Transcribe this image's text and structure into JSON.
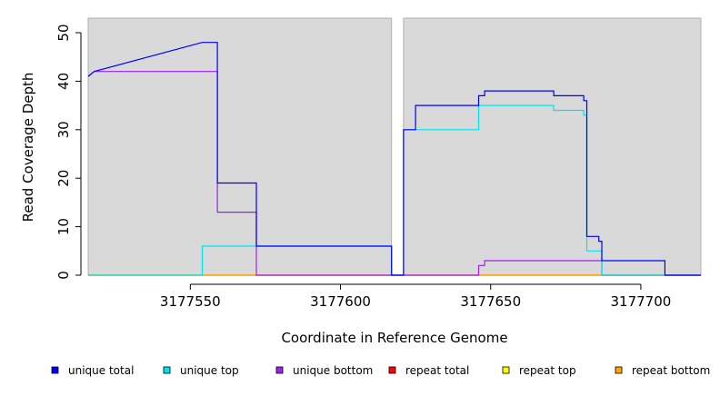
{
  "chart_data": {
    "type": "line",
    "step": true,
    "xlabel": "Coordinate in Reference Genome",
    "ylabel": "Read Coverage Depth",
    "xlim": [
      3177516,
      3177720
    ],
    "ylim": [
      0,
      53
    ],
    "x_ticks": [
      3177550,
      3177600,
      3177650,
      3177700
    ],
    "y_ticks": [
      0,
      10,
      20,
      30,
      40,
      50
    ],
    "background_color": "#d9d9d9",
    "grid": false,
    "legend_position": "bottom",
    "regions": [
      {
        "x": [
          3177516,
          3177617
        ]
      },
      {
        "x": [
          3177621,
          3177720
        ]
      }
    ],
    "series": [
      {
        "name": "unique total",
        "color": "#0000ff",
        "x": [
          3177516,
          3177518,
          3177554,
          3177559,
          3177559,
          3177572,
          3177572,
          3177617,
          3177617,
          3177621,
          3177621,
          3177625,
          3177625,
          3177646,
          3177646,
          3177648,
          3177648,
          3177671,
          3177671,
          3177681,
          3177681,
          3177682,
          3177682,
          3177686,
          3177686,
          3177687,
          3177687,
          3177708,
          3177708,
          3177720
        ],
        "y": [
          41,
          42,
          48,
          48,
          19,
          19,
          6,
          6,
          0,
          0,
          30,
          30,
          35,
          35,
          37,
          37,
          38,
          38,
          37,
          37,
          36,
          36,
          8,
          8,
          7,
          7,
          3,
          3,
          0,
          0
        ]
      },
      {
        "name": "unique top",
        "color": "#00e5ee",
        "x": [
          3177516,
          3177554,
          3177554,
          3177572,
          3177572,
          3177617,
          3177617,
          3177621,
          3177621,
          3177646,
          3177646,
          3177671,
          3177671,
          3177681,
          3177681,
          3177682,
          3177682,
          3177686,
          3177686,
          3177687,
          3177687,
          3177720
        ],
        "y": [
          0,
          0,
          6,
          6,
          6,
          6,
          0,
          0,
          30,
          30,
          35,
          35,
          34,
          34,
          33,
          33,
          5,
          5,
          5,
          5,
          0,
          0
        ]
      },
      {
        "name": "unique bottom",
        "color": "#a020f0",
        "x": [
          3177516,
          3177518,
          3177554,
          3177559,
          3177559,
          3177572,
          3177572,
          3177646,
          3177646,
          3177648,
          3177648,
          3177687,
          3177687,
          3177720
        ],
        "y": [
          41,
          42,
          42,
          42,
          13,
          13,
          0,
          0,
          2,
          2,
          3,
          3,
          0,
          0
        ]
      },
      {
        "name": "repeat total",
        "color": "#ff0000",
        "x": [
          3177516,
          3177720
        ],
        "y": [
          0,
          0
        ]
      },
      {
        "name": "repeat top",
        "color": "#ffff00",
        "x": [
          3177516,
          3177720
        ],
        "y": [
          0,
          0
        ]
      },
      {
        "name": "repeat bottom",
        "color": "#ffa500",
        "x": [
          3177516,
          3177720
        ],
        "y": [
          0,
          0
        ]
      }
    ]
  }
}
